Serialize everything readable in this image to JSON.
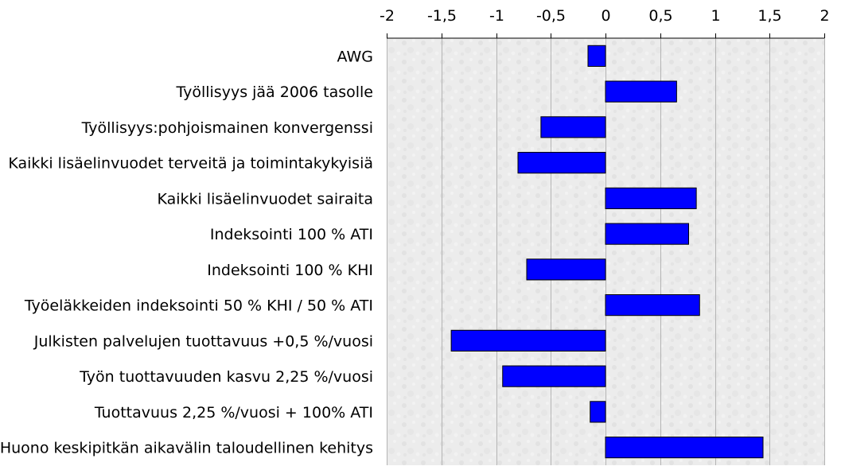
{
  "chart_data": {
    "type": "bar",
    "orientation": "horizontal",
    "title": "",
    "xlabel": "",
    "ylabel": "",
    "xlim": [
      -2,
      2
    ],
    "xticks": [
      -2,
      -1.5,
      -1,
      -0.5,
      0,
      0.5,
      1,
      1.5,
      2
    ],
    "xtick_labels": [
      "-2",
      "-1,5",
      "-1",
      "-0,5",
      "0",
      "0,5",
      "1",
      "1,5",
      "2"
    ],
    "x_axis_position": "top",
    "grid": true,
    "legend": "none",
    "bar_color": "#0000ff",
    "categories": [
      "AWG",
      "Työllisyys jää 2006 tasolle",
      "Työllisyys:pohjoismainen konvergenssi",
      "Kaikki lisäelinvuodet terveitä ja toimintakykyisiä",
      "Kaikki lisäelinvuodet sairaita",
      "Indeksointi 100 % ATI",
      "Indeksointi 100 % KHI",
      "Työeläkkeiden indeksointi  50 % KHI / 50 % ATI",
      "Julkisten palvelujen tuottavuus +0,5 %/vuosi",
      "Työn tuottavuuden kasvu 2,25 %/vuosi",
      "Tuottavuus  2,25 %/vuosi + 100% ATI",
      "Huono keskipitkän aikavälin taloudellinen kehitys"
    ],
    "values": [
      -0.16,
      0.65,
      -0.59,
      -0.8,
      0.83,
      0.76,
      -0.72,
      0.86,
      -1.41,
      -0.94,
      -0.14,
      1.44
    ]
  }
}
